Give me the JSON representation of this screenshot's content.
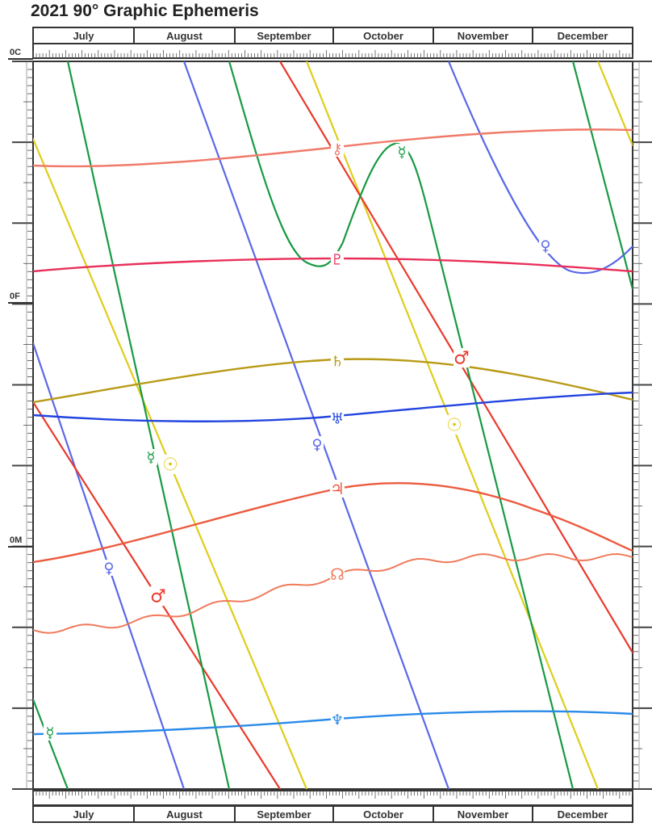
{
  "title": "2021 90° Graphic Ephemeris",
  "chart_data": {
    "type": "line",
    "title": "2021 90° Graphic Ephemeris",
    "months": [
      "July",
      "August",
      "September",
      "October",
      "November",
      "December"
    ],
    "y_labels": [
      "0C",
      "0F",
      "0M"
    ],
    "bodies": [
      {
        "name": "Sun",
        "glyph": "☉",
        "color": "#e0cc1a"
      },
      {
        "name": "Mercury",
        "glyph": "☿",
        "color": "#179a42"
      },
      {
        "name": "Venus",
        "glyph": "♀",
        "color": "#5a68e8"
      },
      {
        "name": "Mars",
        "glyph": "♂",
        "color": "#ea3a2c"
      },
      {
        "name": "Jupiter",
        "glyph": "♃",
        "color": "#ec5a3e"
      },
      {
        "name": "Saturn",
        "glyph": "♄",
        "color": "#b89a16"
      },
      {
        "name": "Uranus",
        "glyph": "♅",
        "color": "#2244e0"
      },
      {
        "name": "Neptune",
        "glyph": "♆",
        "color": "#2a8ae8"
      },
      {
        "name": "Pluto",
        "glyph": "♇",
        "color": "#e8305a"
      },
      {
        "name": "Chiron",
        "glyph": "⚷",
        "color": "#f07a6a"
      },
      {
        "name": "North Node",
        "glyph": "☊",
        "color": "#f07a5a"
      }
    ]
  }
}
